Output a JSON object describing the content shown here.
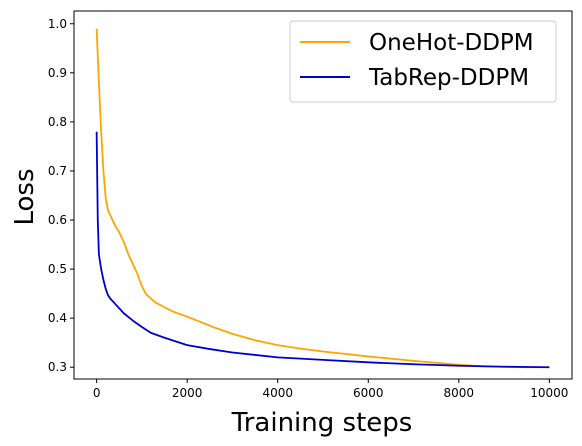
{
  "chart_data": {
    "type": "line",
    "title": "",
    "xlabel": "Training steps",
    "ylabel": "Loss",
    "xlim": [
      -500,
      10500
    ],
    "ylim": [
      0.276,
      1.026
    ],
    "xticks": [
      0,
      2000,
      4000,
      6000,
      8000,
      10000
    ],
    "yticks": [
      0.3,
      0.4,
      0.5,
      0.6,
      0.7,
      0.8,
      0.9,
      1.0
    ],
    "xtick_labels": [
      "0",
      "2000",
      "4000",
      "6000",
      "8000",
      "10000"
    ],
    "ytick_labels": [
      "0.3",
      "0.4",
      "0.5",
      "0.6",
      "0.7",
      "0.8",
      "0.9",
      "1.0"
    ],
    "grid": false,
    "legend_position": "upper right",
    "series": [
      {
        "name": "OneHot-DDPM",
        "color": "#FFA500",
        "x": [
          0,
          50,
          100,
          150,
          200,
          250,
          300,
          400,
          500,
          600,
          700,
          800,
          900,
          1000,
          1100,
          1200,
          1300,
          1500,
          1700,
          2000,
          2300,
          2600,
          3000,
          3500,
          4000,
          4500,
          5000,
          6000,
          7000,
          8000,
          8500,
          9000,
          9500,
          10000
        ],
        "y": [
          0.99,
          0.88,
          0.78,
          0.7,
          0.645,
          0.62,
          0.61,
          0.59,
          0.575,
          0.555,
          0.53,
          0.51,
          0.49,
          0.465,
          0.448,
          0.44,
          0.432,
          0.422,
          0.413,
          0.403,
          0.392,
          0.381,
          0.368,
          0.355,
          0.345,
          0.338,
          0.332,
          0.322,
          0.313,
          0.305,
          0.302,
          0.301,
          0.3,
          0.3
        ]
      },
      {
        "name": "TabRep-DDPM",
        "color": "#0000CD",
        "x": [
          0,
          25,
          50,
          100,
          150,
          200,
          250,
          300,
          400,
          500,
          600,
          800,
          1000,
          1200,
          1500,
          2000,
          2500,
          3000,
          4000,
          5000,
          6000,
          7000,
          8000,
          9000,
          10000
        ],
        "y": [
          0.78,
          0.6,
          0.53,
          0.5,
          0.478,
          0.46,
          0.447,
          0.44,
          0.43,
          0.42,
          0.41,
          0.395,
          0.382,
          0.37,
          0.36,
          0.345,
          0.337,
          0.33,
          0.32,
          0.315,
          0.31,
          0.306,
          0.303,
          0.301,
          0.3
        ]
      }
    ]
  }
}
